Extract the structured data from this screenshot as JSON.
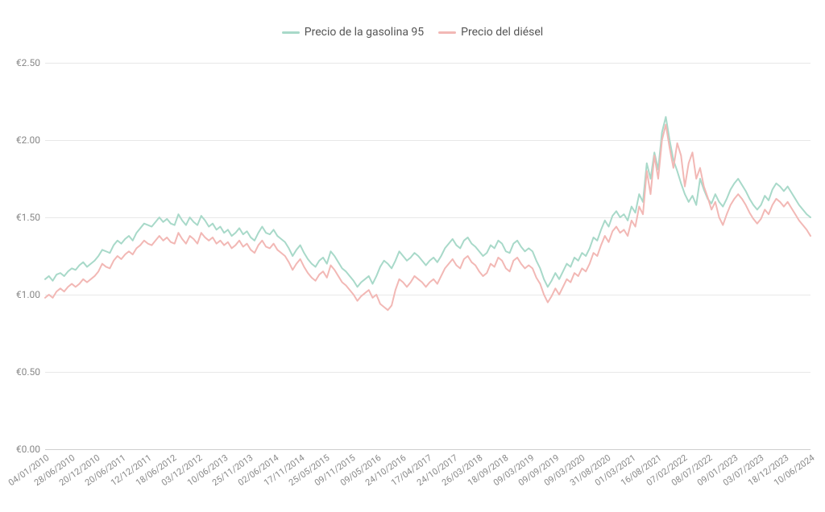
{
  "chart": {
    "type": "line",
    "background_color": "#ffffff",
    "grid_color": "#e8e8e8",
    "axis_text_color": "#888888",
    "legend_text_color": "#555555",
    "legend_fontsize": 14,
    "axis_fontsize": 12,
    "line_width": 2,
    "ylim": [
      0,
      2.5
    ],
    "ytick_step": 0.5,
    "yticks": [
      "€0.00",
      "€0.50",
      "€1.00",
      "€1.50",
      "€2.00",
      "€2.50"
    ],
    "xlabels": [
      "04/01/2010",
      "28/06/2010",
      "20/12/2010",
      "20/06/2011",
      "12/12/2011",
      "18/06/2012",
      "03/12/2012",
      "10/06/2013",
      "25/11/2013",
      "02/06/2014",
      "17/11/2014",
      "25/05/2015",
      "09/11/2015",
      "09/05/2016",
      "24/10/2016",
      "17/04/2017",
      "24/10/2017",
      "26/03/2018",
      "18/09/2018",
      "09/03/2019",
      "09/09/2019",
      "09/03/2020",
      "31/08/2020",
      "01/03/2021",
      "16/08/2021",
      "07/02/2022",
      "08/07/2022",
      "09/01/2023",
      "03/07/2023",
      "18/12/2023",
      "10/06/2024"
    ],
    "series": [
      {
        "name": "Precio de la gasolina 95",
        "color": "#a8d9c9",
        "values": [
          1.1,
          1.12,
          1.09,
          1.13,
          1.14,
          1.12,
          1.15,
          1.17,
          1.16,
          1.19,
          1.21,
          1.18,
          1.2,
          1.22,
          1.25,
          1.29,
          1.28,
          1.27,
          1.32,
          1.35,
          1.33,
          1.36,
          1.38,
          1.35,
          1.4,
          1.43,
          1.46,
          1.45,
          1.44,
          1.47,
          1.5,
          1.47,
          1.49,
          1.46,
          1.45,
          1.52,
          1.48,
          1.45,
          1.5,
          1.47,
          1.45,
          1.51,
          1.48,
          1.44,
          1.46,
          1.42,
          1.44,
          1.4,
          1.42,
          1.38,
          1.4,
          1.43,
          1.39,
          1.41,
          1.37,
          1.35,
          1.4,
          1.44,
          1.4,
          1.39,
          1.42,
          1.38,
          1.36,
          1.34,
          1.3,
          1.25,
          1.29,
          1.32,
          1.27,
          1.23,
          1.2,
          1.18,
          1.22,
          1.24,
          1.2,
          1.28,
          1.25,
          1.21,
          1.17,
          1.15,
          1.12,
          1.09,
          1.05,
          1.08,
          1.1,
          1.12,
          1.07,
          1.12,
          1.18,
          1.22,
          1.2,
          1.17,
          1.22,
          1.28,
          1.25,
          1.22,
          1.24,
          1.27,
          1.25,
          1.22,
          1.19,
          1.22,
          1.24,
          1.21,
          1.25,
          1.3,
          1.33,
          1.36,
          1.32,
          1.3,
          1.35,
          1.37,
          1.33,
          1.31,
          1.28,
          1.25,
          1.27,
          1.32,
          1.3,
          1.35,
          1.33,
          1.28,
          1.27,
          1.33,
          1.35,
          1.31,
          1.28,
          1.3,
          1.28,
          1.22,
          1.17,
          1.1,
          1.05,
          1.09,
          1.14,
          1.1,
          1.15,
          1.2,
          1.18,
          1.24,
          1.22,
          1.27,
          1.25,
          1.3,
          1.37,
          1.35,
          1.42,
          1.48,
          1.44,
          1.51,
          1.54,
          1.5,
          1.52,
          1.48,
          1.57,
          1.53,
          1.65,
          1.6,
          1.85,
          1.75,
          1.92,
          1.81,
          2.05,
          2.15,
          2.0,
          1.87,
          1.8,
          1.72,
          1.65,
          1.6,
          1.64,
          1.58,
          1.75,
          1.68,
          1.62,
          1.59,
          1.65,
          1.6,
          1.57,
          1.62,
          1.68,
          1.72,
          1.75,
          1.71,
          1.67,
          1.62,
          1.58,
          1.55,
          1.58,
          1.64,
          1.61,
          1.68,
          1.72,
          1.7,
          1.67,
          1.7,
          1.66,
          1.62,
          1.58,
          1.55,
          1.52,
          1.5
        ]
      },
      {
        "name": "Precio del diésel",
        "color": "#f2b8b5",
        "values": [
          0.98,
          1.0,
          0.98,
          1.02,
          1.04,
          1.02,
          1.05,
          1.07,
          1.05,
          1.07,
          1.1,
          1.08,
          1.1,
          1.12,
          1.15,
          1.2,
          1.18,
          1.17,
          1.22,
          1.25,
          1.23,
          1.26,
          1.28,
          1.26,
          1.3,
          1.32,
          1.35,
          1.33,
          1.32,
          1.35,
          1.38,
          1.35,
          1.37,
          1.34,
          1.33,
          1.4,
          1.36,
          1.33,
          1.38,
          1.36,
          1.33,
          1.4,
          1.37,
          1.35,
          1.37,
          1.33,
          1.35,
          1.32,
          1.34,
          1.3,
          1.32,
          1.35,
          1.31,
          1.33,
          1.29,
          1.27,
          1.32,
          1.35,
          1.31,
          1.3,
          1.33,
          1.29,
          1.27,
          1.25,
          1.21,
          1.16,
          1.2,
          1.23,
          1.18,
          1.14,
          1.11,
          1.09,
          1.13,
          1.15,
          1.11,
          1.19,
          1.16,
          1.12,
          1.08,
          1.06,
          1.03,
          1.0,
          0.96,
          0.99,
          1.01,
          1.03,
          0.98,
          1.0,
          0.94,
          0.92,
          0.9,
          0.93,
          1.03,
          1.1,
          1.08,
          1.05,
          1.08,
          1.12,
          1.1,
          1.08,
          1.05,
          1.08,
          1.1,
          1.07,
          1.12,
          1.17,
          1.2,
          1.23,
          1.19,
          1.17,
          1.23,
          1.25,
          1.21,
          1.19,
          1.15,
          1.12,
          1.14,
          1.2,
          1.18,
          1.24,
          1.22,
          1.17,
          1.15,
          1.22,
          1.24,
          1.2,
          1.17,
          1.19,
          1.17,
          1.11,
          1.07,
          1.0,
          0.95,
          0.99,
          1.04,
          1.0,
          1.05,
          1.1,
          1.08,
          1.14,
          1.12,
          1.17,
          1.15,
          1.2,
          1.27,
          1.25,
          1.32,
          1.38,
          1.34,
          1.41,
          1.44,
          1.4,
          1.42,
          1.38,
          1.48,
          1.44,
          1.57,
          1.52,
          1.8,
          1.65,
          1.9,
          1.75,
          2.0,
          2.1,
          1.95,
          1.82,
          1.98,
          1.9,
          1.7,
          1.85,
          1.92,
          1.75,
          1.82,
          1.7,
          1.63,
          1.55,
          1.6,
          1.5,
          1.45,
          1.52,
          1.58,
          1.62,
          1.65,
          1.62,
          1.58,
          1.53,
          1.49,
          1.46,
          1.49,
          1.55,
          1.52,
          1.58,
          1.62,
          1.6,
          1.57,
          1.6,
          1.56,
          1.52,
          1.48,
          1.45,
          1.42,
          1.38
        ]
      }
    ]
  }
}
